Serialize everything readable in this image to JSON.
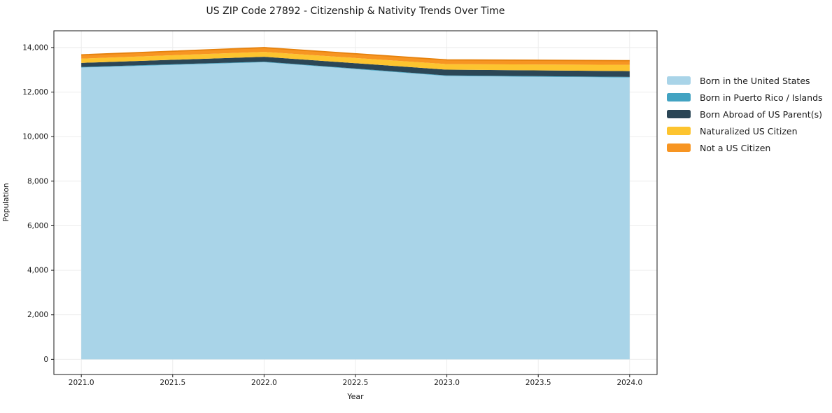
{
  "chart_data": {
    "type": "area",
    "stacked": true,
    "title": "US ZIP Code 27892 - Citizenship & Nativity Trends Over Time",
    "xlabel": "Year",
    "ylabel": "Population",
    "x": [
      2021,
      2022,
      2023,
      2024
    ],
    "series": [
      {
        "name": "Born in the United States",
        "color": "#a9d4e8",
        "values": [
          13100,
          13340,
          12720,
          12655
        ]
      },
      {
        "name": "Born in Puerto Rico / Islands",
        "color": "#42a3c2",
        "values": [
          25,
          25,
          25,
          25
        ]
      },
      {
        "name": "Born Abroad of US Parent(s)",
        "color": "#2b4656",
        "values": [
          185,
          220,
          260,
          260
        ]
      },
      {
        "name": "Naturalized US Citizen",
        "color": "#fdc42f",
        "values": [
          190,
          220,
          250,
          280
        ]
      },
      {
        "name": "Not a US Citizen",
        "color": "#f79522",
        "values": [
          170,
          190,
          190,
          190
        ]
      }
    ],
    "totals": [
      13670,
      13995,
      13445,
      13410
    ],
    "xticks": [
      2021.0,
      2021.5,
      2022.0,
      2022.5,
      2023.0,
      2023.5,
      2024.0
    ],
    "yticks": [
      0,
      2000,
      4000,
      6000,
      8000,
      10000,
      12000,
      14000
    ],
    "xlim": [
      2020.85,
      2024.15
    ],
    "ylim": [
      -680,
      14750
    ],
    "grid": true,
    "legend_position": "outside-center-right",
    "top_edge_color": "#e5810c"
  },
  "colors": {
    "background": "#ffffff",
    "grid": "#ebebeb",
    "frame": "#1a1a1a",
    "tick": "#1a1a1a",
    "text": "#1a1a1a"
  }
}
